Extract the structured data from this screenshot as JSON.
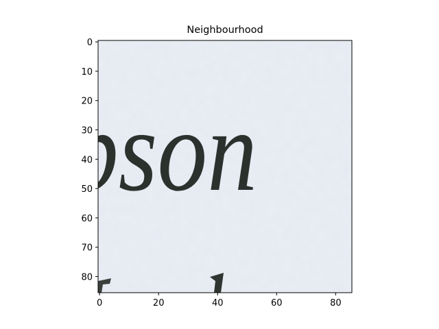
{
  "chart_data": {
    "type": "image",
    "title": "Neighbourhood",
    "image_text": "pson",
    "xlim": [
      -0.5,
      85.5
    ],
    "ylim": [
      85.5,
      -0.5
    ],
    "xticks": [
      0,
      20,
      40,
      60,
      80
    ],
    "yticks": [
      0,
      10,
      20,
      30,
      40,
      50,
      60,
      70,
      80
    ]
  }
}
